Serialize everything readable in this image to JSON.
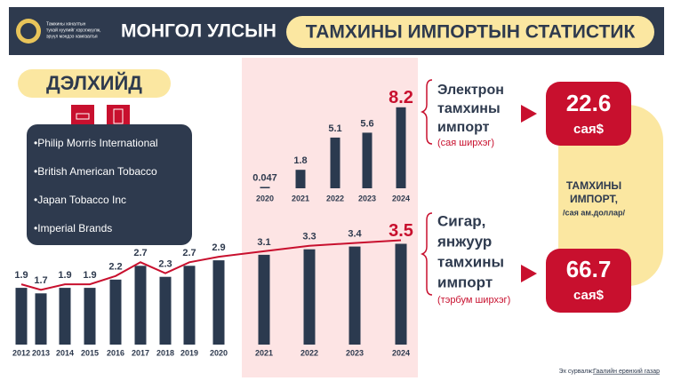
{
  "header": {
    "motto": [
      "Тамхины хяналтын",
      "тухай хуулийг хэрэгжүүлж,",
      "эрүүл мэндээ хамгаалъя"
    ],
    "title_left": "МОНГОЛ УЛСЫН",
    "title_right": "ТАМХИНЫ ИМПОРТЫН СТАТИСТИК"
  },
  "world": {
    "title": "ДЭЛХИЙД",
    "companies": [
      "•Philip Morris International",
      "•British American Tobacco",
      "•Japan Tobacco Inc",
      "•Imperial Brands"
    ]
  },
  "chart_data": [
    {
      "type": "bar",
      "name_lines": [
        "Электрон",
        "тамхины",
        "импорт"
      ],
      "unit": "(сая ширхэг)",
      "categories": [
        "2020",
        "2021",
        "2022",
        "2023",
        "2024"
      ],
      "values": [
        0.047,
        1.8,
        5.1,
        5.6,
        8.2
      ],
      "color": "#2b3a4f",
      "highlight_color": "#c8102e"
    },
    {
      "type": "bar",
      "name_lines": [
        "Сигар,",
        "янжуур",
        "тамхины",
        "импорт"
      ],
      "unit": "(тэрбум ширхэг)",
      "categories": [
        "2012",
        "2013",
        "2014",
        "2015",
        "2016",
        "2017",
        "2018",
        "2019",
        "2020",
        "2021",
        "2022",
        "2023",
        "2024"
      ],
      "values": [
        1.9,
        1.7,
        1.9,
        1.9,
        2.2,
        2.7,
        2.3,
        2.7,
        2.9,
        3.1,
        3.3,
        3.4,
        3.5
      ],
      "color": "#2b3a4f",
      "highlight_color": "#c8102e",
      "line": true,
      "line_color": "#c8102e"
    }
  ],
  "totals": {
    "title": [
      "ТАМХИНЫ",
      "ИМПОРТ,"
    ],
    "unit_note": "/сая ам.доллар/",
    "items": [
      {
        "value": 22.6,
        "unit": "сая$"
      },
      {
        "value": 66.7,
        "unit": "сая$"
      }
    ]
  },
  "source": {
    "label": "Эх сурвалж:",
    "link": "Гаалийн ерөнхий газар"
  }
}
